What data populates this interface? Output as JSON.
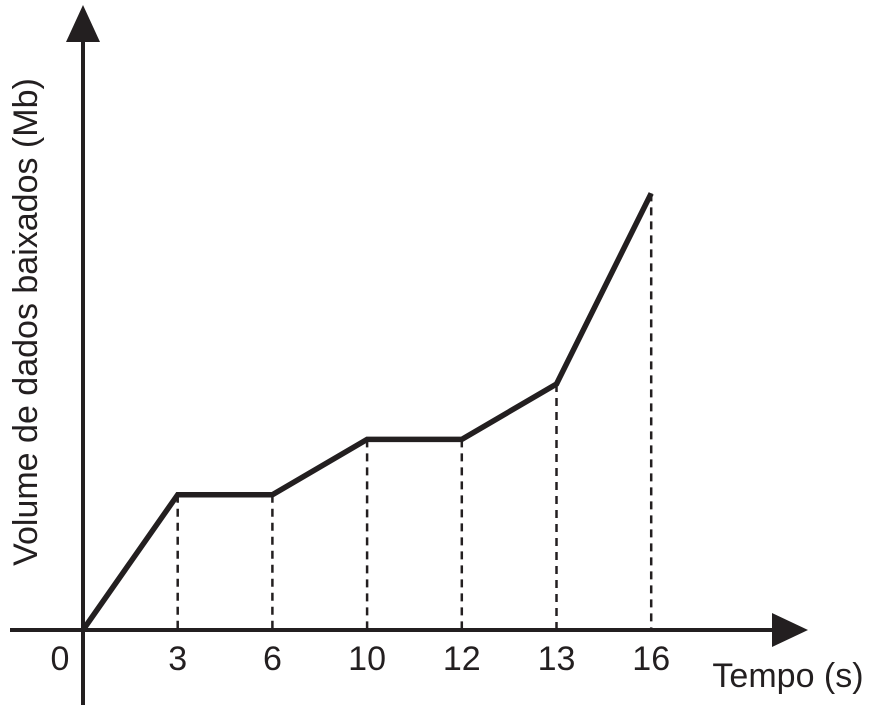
{
  "chart_data": {
    "type": "line",
    "x_label": "Tempo (s)",
    "y_label": "Volume de dados baixados (Mb)",
    "categories": [
      "0",
      "3",
      "6",
      "10",
      "12",
      "13",
      "16"
    ],
    "values": [
      0,
      2.2,
      2.2,
      3.1,
      3.1,
      4.0,
      7.1
    ],
    "color": "#231f20",
    "ylim": [
      0,
      10
    ]
  }
}
